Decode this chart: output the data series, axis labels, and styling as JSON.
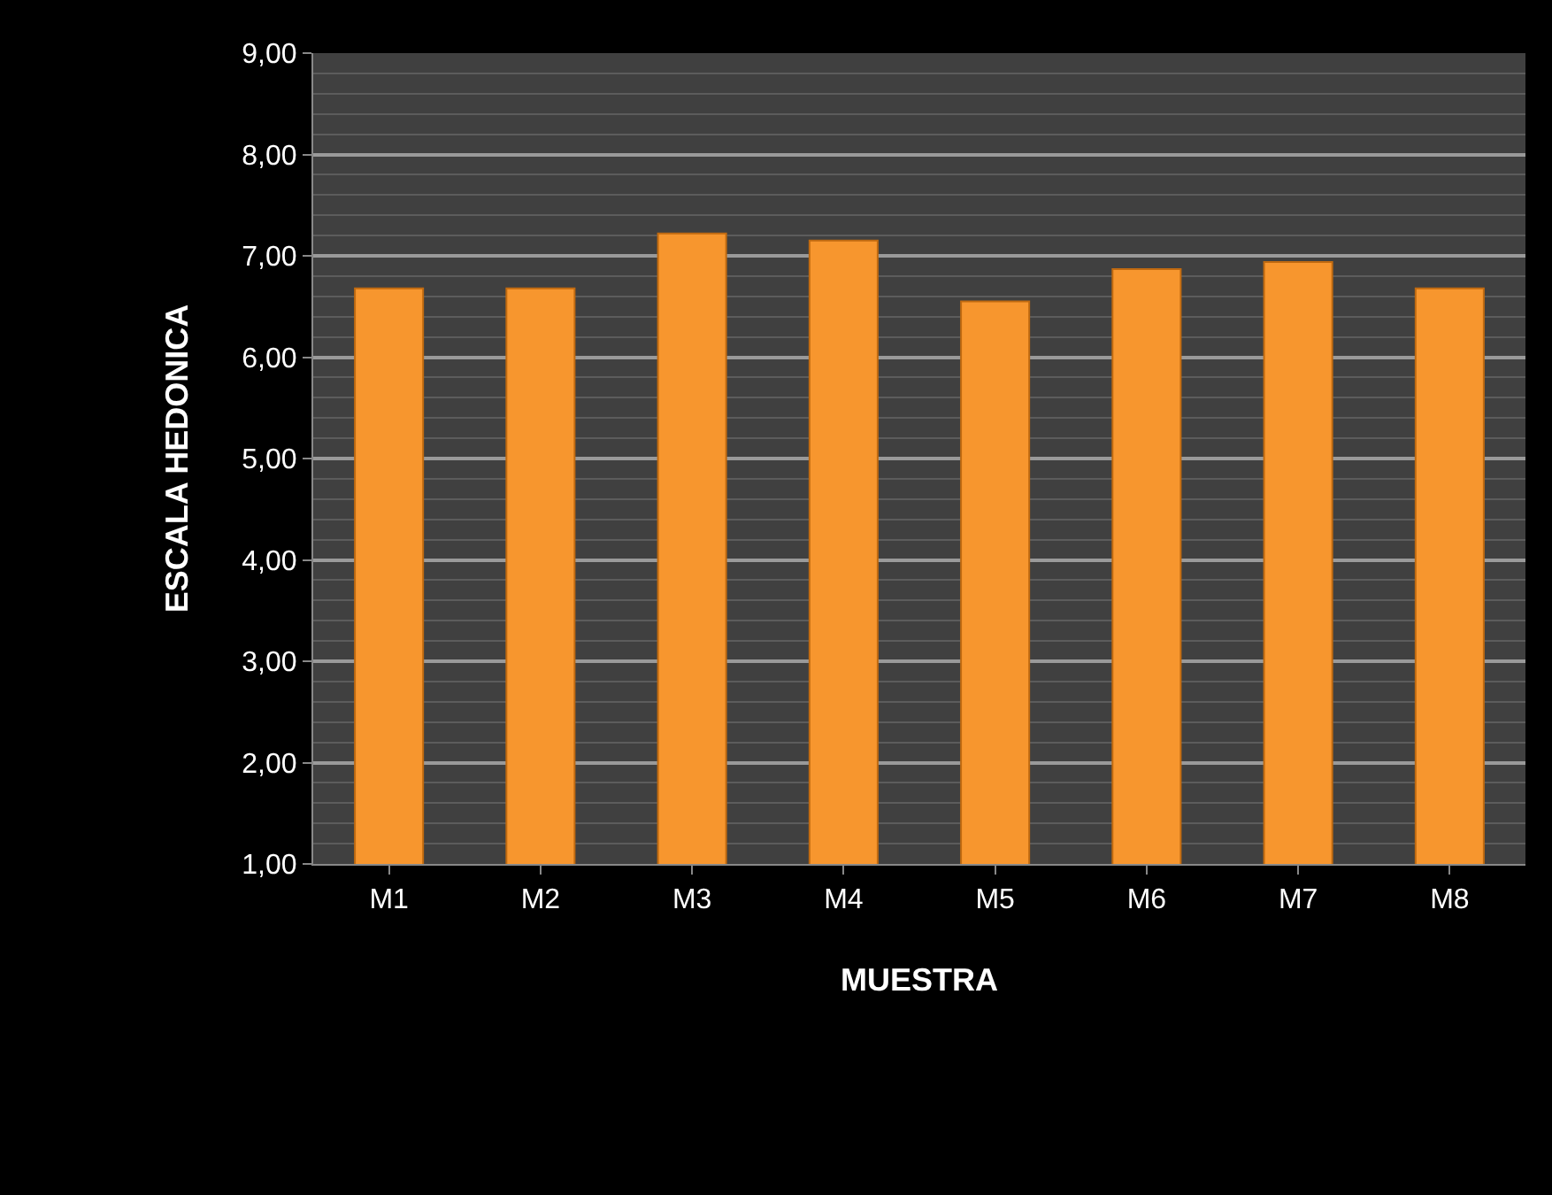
{
  "chart_data": {
    "type": "bar",
    "xlabel": "MUESTRA",
    "ylabel": "ESCALA HEDONICA",
    "categories": [
      "M1",
      "M2",
      "M3",
      "M4",
      "M5",
      "M6",
      "M7",
      "M8"
    ],
    "values": [
      6.68,
      6.68,
      7.22,
      7.15,
      6.55,
      6.87,
      6.94,
      6.68
    ],
    "color": "#f7962e",
    "ylim": [
      1,
      9
    ],
    "yticks": [
      {
        "value": 1,
        "label": "1,00"
      },
      {
        "value": 2,
        "label": "2,00"
      },
      {
        "value": 3,
        "label": "3,00"
      },
      {
        "value": 4,
        "label": "4,00"
      },
      {
        "value": 5,
        "label": "5,00"
      },
      {
        "value": 6,
        "label": "6,00"
      },
      {
        "value": 7,
        "label": "7,00"
      },
      {
        "value": 8,
        "label": "8,00"
      },
      {
        "value": 9,
        "label": "9,00"
      }
    ],
    "grid": "y"
  }
}
